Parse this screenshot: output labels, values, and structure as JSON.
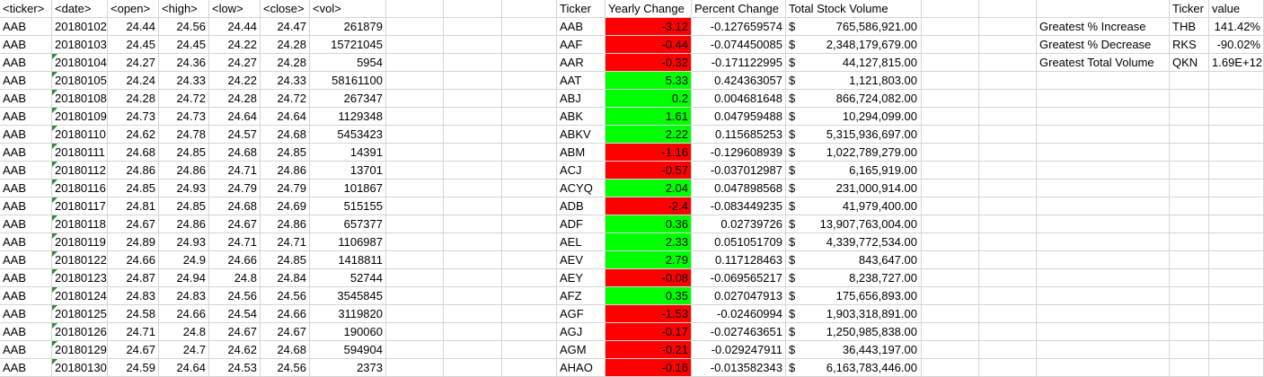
{
  "raw_headers": [
    "<ticker>",
    "<date>",
    "<open>",
    "<high>",
    "<low>",
    "<close>",
    "<vol>"
  ],
  "raw_rows": [
    [
      "AAB",
      "20180102",
      "24.44",
      "24.56",
      "24.44",
      "24.47",
      "261879"
    ],
    [
      "AAB",
      "20180103",
      "24.45",
      "24.45",
      "24.22",
      "24.28",
      "15721045"
    ],
    [
      "AAB",
      "20180104",
      "24.27",
      "24.36",
      "24.27",
      "24.28",
      "5954"
    ],
    [
      "AAB",
      "20180105",
      "24.24",
      "24.33",
      "24.22",
      "24.33",
      "58161100"
    ],
    [
      "AAB",
      "20180108",
      "24.28",
      "24.72",
      "24.28",
      "24.72",
      "267347"
    ],
    [
      "AAB",
      "20180109",
      "24.73",
      "24.73",
      "24.64",
      "24.64",
      "1129348"
    ],
    [
      "AAB",
      "20180110",
      "24.62",
      "24.78",
      "24.57",
      "24.68",
      "5453423"
    ],
    [
      "AAB",
      "20180111",
      "24.68",
      "24.85",
      "24.68",
      "24.85",
      "14391"
    ],
    [
      "AAB",
      "20180112",
      "24.86",
      "24.86",
      "24.71",
      "24.86",
      "13701"
    ],
    [
      "AAB",
      "20180116",
      "24.85",
      "24.93",
      "24.79",
      "24.79",
      "101867"
    ],
    [
      "AAB",
      "20180117",
      "24.81",
      "24.85",
      "24.68",
      "24.69",
      "515155"
    ],
    [
      "AAB",
      "20180118",
      "24.67",
      "24.86",
      "24.67",
      "24.86",
      "657377"
    ],
    [
      "AAB",
      "20180119",
      "24.89",
      "24.93",
      "24.71",
      "24.71",
      "1106987"
    ],
    [
      "AAB",
      "20180122",
      "24.66",
      "24.9",
      "24.66",
      "24.85",
      "1418811"
    ],
    [
      "AAB",
      "20180123",
      "24.87",
      "24.94",
      "24.8",
      "24.84",
      "52744"
    ],
    [
      "AAB",
      "20180124",
      "24.83",
      "24.83",
      "24.56",
      "24.56",
      "3545845"
    ],
    [
      "AAB",
      "20180125",
      "24.58",
      "24.66",
      "24.54",
      "24.66",
      "3119820"
    ],
    [
      "AAB",
      "20180126",
      "24.71",
      "24.8",
      "24.67",
      "24.67",
      "190060"
    ],
    [
      "AAB",
      "20180129",
      "24.67",
      "24.7",
      "24.62",
      "24.68",
      "594904"
    ],
    [
      "AAB",
      "20180130",
      "24.59",
      "24.64",
      "24.53",
      "24.56",
      "2373"
    ]
  ],
  "summary_headers": [
    "Ticker",
    "Yearly Change",
    "Percent Change",
    "Total Stock Volume"
  ],
  "summary_rows": [
    {
      "ticker": "AAB",
      "change": "-3.12",
      "pct": "-0.127659574",
      "vol": "765,586,921.00",
      "color": "#ff0000"
    },
    {
      "ticker": "AAF",
      "change": "-0.44",
      "pct": "-0.074450085",
      "vol": "2,348,179,679.00",
      "color": "#ff0000"
    },
    {
      "ticker": "AAR",
      "change": "-0.32",
      "pct": "-0.171122995",
      "vol": "44,127,815.00",
      "color": "#ff0000"
    },
    {
      "ticker": "AAT",
      "change": "5.33",
      "pct": "0.424363057",
      "vol": "1,121,803.00",
      "color": "#00ff00"
    },
    {
      "ticker": "ABJ",
      "change": "0.2",
      "pct": "0.004681648",
      "vol": "866,724,082.00",
      "color": "#00ff00"
    },
    {
      "ticker": "ABK",
      "change": "1.61",
      "pct": "0.047959488",
      "vol": "10,294,099.00",
      "color": "#00ff00"
    },
    {
      "ticker": "ABKV",
      "change": "2.22",
      "pct": "0.115685253",
      "vol": "5,315,936,697.00",
      "color": "#00ff00"
    },
    {
      "ticker": "ABM",
      "change": "-1.16",
      "pct": "-0.129608939",
      "vol": "1,022,789,279.00",
      "color": "#ff0000"
    },
    {
      "ticker": "ACJ",
      "change": "-0.57",
      "pct": "-0.037012987",
      "vol": "6,165,919.00",
      "color": "#ff0000"
    },
    {
      "ticker": "ACYQ",
      "change": "2.04",
      "pct": "0.047898568",
      "vol": "231,000,914.00",
      "color": "#00ff00"
    },
    {
      "ticker": "ADB",
      "change": "-2.4",
      "pct": "-0.083449235",
      "vol": "41,979,400.00",
      "color": "#ff0000"
    },
    {
      "ticker": "ADF",
      "change": "0.36",
      "pct": "0.02739726",
      "vol": "13,907,763,004.00",
      "color": "#00ff00"
    },
    {
      "ticker": "AEL",
      "change": "2.33",
      "pct": "0.051051709",
      "vol": "4,339,772,534.00",
      "color": "#00ff00"
    },
    {
      "ticker": "AEV",
      "change": "2.79",
      "pct": "0.117128463",
      "vol": "843,647.00",
      "color": "#00ff00"
    },
    {
      "ticker": "AEY",
      "change": "-0.08",
      "pct": "-0.069565217",
      "vol": "8,238,727.00",
      "color": "#ff0000"
    },
    {
      "ticker": "AFZ",
      "change": "0.35",
      "pct": "0.027047913",
      "vol": "175,656,893.00",
      "color": "#00ff00"
    },
    {
      "ticker": "AGF",
      "change": "-1.53",
      "pct": "-0.02460994",
      "vol": "1,903,318,891.00",
      "color": "#ff0000"
    },
    {
      "ticker": "AGJ",
      "change": "-0.17",
      "pct": "-0.027463651",
      "vol": "1,250,985,838.00",
      "color": "#ff0000"
    },
    {
      "ticker": "AGM",
      "change": "-0.21",
      "pct": "-0.029247911",
      "vol": "36,443,197.00",
      "color": "#ff0000"
    },
    {
      "ticker": "AHAO",
      "change": "-0.16",
      "pct": "-0.013582343",
      "vol": "6,163,783,446.00",
      "color": "#ff0000"
    }
  ],
  "currency_symbol": "$",
  "greatest_headers": [
    "Ticker",
    "value"
  ],
  "greatest_rows": [
    {
      "label": "Greatest % Increase",
      "ticker": "THB",
      "value": "141.42%"
    },
    {
      "label": "Greatest % Decrease",
      "ticker": "RKS",
      "value": "-90.02%"
    },
    {
      "label": "Greatest Total Volume",
      "ticker": "QKN",
      "value": "1.69E+12"
    }
  ],
  "colors": {
    "positive": "#00ff00",
    "negative": "#ff0000",
    "grid": "#d4d4d4",
    "error_flag": "#2e8b3a"
  }
}
